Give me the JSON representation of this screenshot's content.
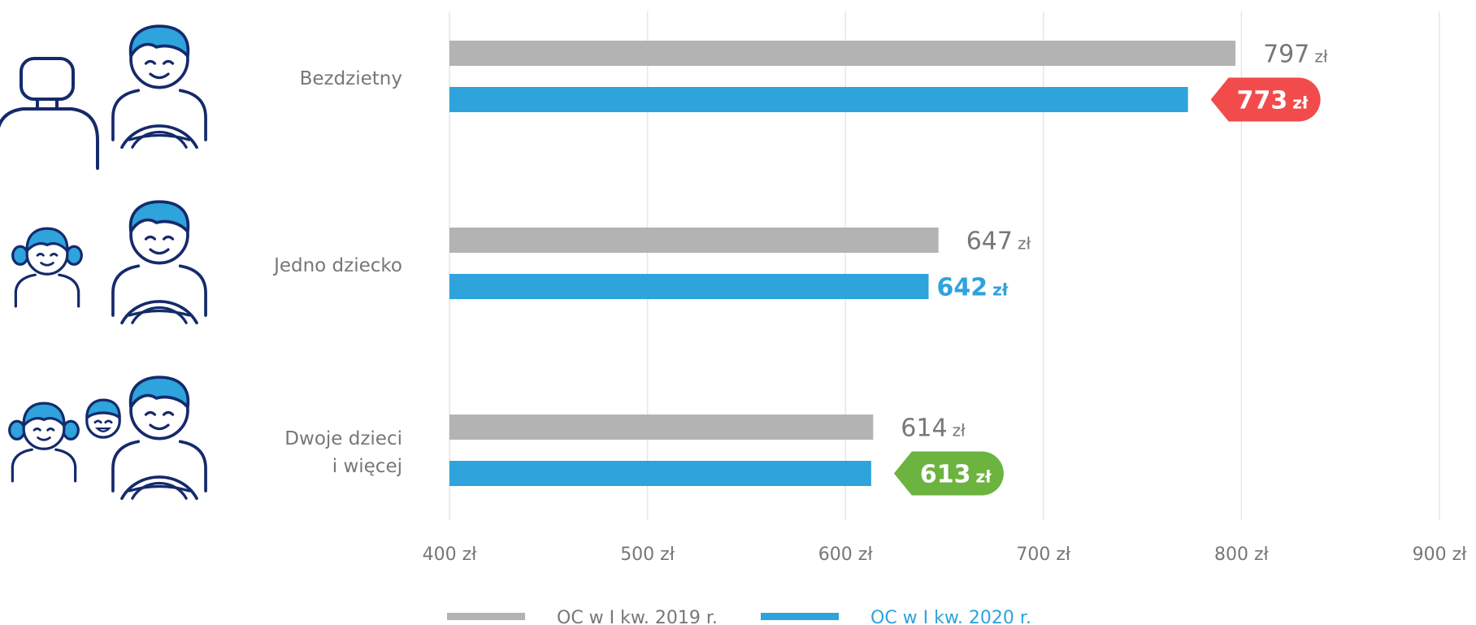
{
  "chart_data": {
    "type": "bar",
    "orientation": "horizontal",
    "categories": [
      {
        "label_lines": [
          "Bezdzietny"
        ],
        "icon": "empty-seat-and-driver-icon"
      },
      {
        "label_lines": [
          "Jedno dziecko"
        ],
        "icon": "child-and-driver-icon"
      },
      {
        "label_lines": [
          "Dwoje dzieci",
          "i więcej"
        ],
        "icon": "two-children-and-driver-icon"
      }
    ],
    "series": [
      {
        "name": "OC w I kw. 2019 r.",
        "color": "#b3b3b3",
        "values": [
          797,
          647,
          614
        ]
      },
      {
        "name": "OC w I kw. 2020 r.",
        "color": "#2ea3dc",
        "values": [
          773,
          642,
          613
        ]
      }
    ],
    "value_labels": [
      [
        {
          "number": "797",
          "unit": "zł",
          "style": "plain",
          "color": "#777777"
        },
        {
          "number": "773",
          "unit": "zł",
          "style": "badge",
          "color": "#f24b4b"
        }
      ],
      [
        {
          "number": "647",
          "unit": "zł",
          "style": "plain",
          "color": "#777777"
        },
        {
          "number": "642",
          "unit": "zł",
          "style": "plain-bold",
          "color": "#2ea3dc"
        }
      ],
      [
        {
          "number": "614",
          "unit": "zł",
          "style": "plain",
          "color": "#777777"
        },
        {
          "number": "613",
          "unit": "zł",
          "style": "badge",
          "color": "#6cb33f"
        }
      ]
    ],
    "xlim": [
      400,
      900
    ],
    "x_ticks": [
      {
        "value": 400,
        "label": "400 zł"
      },
      {
        "value": 500,
        "label": "500 zł"
      },
      {
        "value": 600,
        "label": "600 zł"
      },
      {
        "value": 700,
        "label": "700 zł"
      },
      {
        "value": 800,
        "label": "800 zł"
      },
      {
        "value": 900,
        "label": "900 zł"
      }
    ],
    "grid": true,
    "legend_position": "bottom",
    "title": "",
    "xlabel": "",
    "ylabel": ""
  },
  "colors": {
    "icon_stroke": "#152a6b",
    "icon_fill": "#2ea3dc",
    "text_gray": "#777777",
    "grid": "#e6e6e6"
  }
}
